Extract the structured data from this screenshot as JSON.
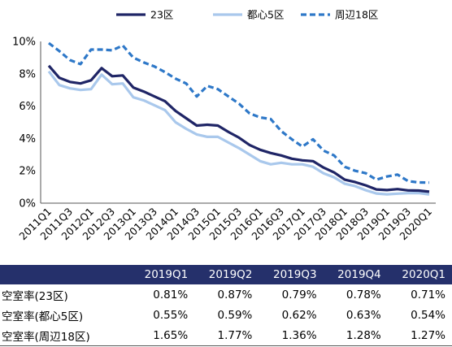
{
  "colors": {
    "ku23": "#1f2566",
    "toshin5": "#a9c8ec",
    "shuhen18": "#2e78c8",
    "table_header_bg": "#25306b"
  },
  "chart_data": {
    "type": "line",
    "legend_position": "top",
    "grid": false,
    "x": [
      "2011Q1",
      "2011Q2",
      "2011Q3",
      "2011Q4",
      "2012Q1",
      "2012Q2",
      "2012Q3",
      "2012Q4",
      "2013Q1",
      "2013Q2",
      "2013Q3",
      "2013Q4",
      "2014Q1",
      "2014Q2",
      "2014Q3",
      "2014Q4",
      "2015Q1",
      "2015Q2",
      "2015Q3",
      "2015Q4",
      "2016Q1",
      "2016Q2",
      "2016Q3",
      "2016Q4",
      "2017Q1",
      "2017Q2",
      "2017Q3",
      "2017Q4",
      "2018Q1",
      "2018Q2",
      "2018Q3",
      "2018Q4",
      "2019Q1",
      "2019Q2",
      "2019Q3",
      "2019Q4",
      "2020Q1"
    ],
    "x_tick_labels": [
      "2011Q1",
      "2011Q3",
      "2012Q1",
      "2012Q3",
      "2013Q1",
      "2013Q3",
      "2014Q1",
      "2014Q3",
      "2015Q1",
      "2015Q3",
      "2016Q1",
      "2016Q3",
      "2017Q1",
      "2017Q3",
      "2018Q1",
      "2018Q3",
      "2019Q1",
      "2019Q3",
      "2020Q1"
    ],
    "y_ticks": [
      "0%",
      "2%",
      "4%",
      "6%",
      "8%",
      "10%"
    ],
    "ylim": [
      0,
      10
    ],
    "series": [
      {
        "name": "23区",
        "style": "solid-thick",
        "values": [
          8.5,
          7.75,
          7.5,
          7.4,
          7.6,
          8.35,
          7.85,
          7.9,
          7.15,
          6.9,
          6.6,
          6.3,
          5.7,
          5.25,
          4.8,
          4.85,
          4.8,
          4.4,
          4.05,
          3.6,
          3.3,
          3.1,
          2.95,
          2.75,
          2.65,
          2.6,
          2.2,
          1.9,
          1.45,
          1.3,
          1.1,
          0.85,
          0.81,
          0.87,
          0.79,
          0.78,
          0.71
        ]
      },
      {
        "name": "都心5区",
        "style": "solid-light",
        "values": [
          8.15,
          7.3,
          7.1,
          7.0,
          7.05,
          7.95,
          7.35,
          7.4,
          6.55,
          6.35,
          6.05,
          5.75,
          5.0,
          4.6,
          4.25,
          4.1,
          4.1,
          3.75,
          3.4,
          3.0,
          2.6,
          2.4,
          2.5,
          2.4,
          2.4,
          2.25,
          1.85,
          1.6,
          1.2,
          1.05,
          0.8,
          0.6,
          0.55,
          0.59,
          0.62,
          0.63,
          0.54
        ]
      },
      {
        "name": "周辺18区",
        "style": "dashed",
        "values": [
          9.9,
          9.4,
          8.85,
          8.6,
          9.5,
          9.5,
          9.45,
          9.75,
          9.0,
          8.7,
          8.45,
          8.1,
          7.7,
          7.4,
          6.6,
          7.25,
          7.05,
          6.6,
          6.15,
          5.55,
          5.3,
          5.2,
          4.45,
          3.95,
          3.5,
          3.95,
          3.25,
          2.95,
          2.25,
          2.0,
          1.85,
          1.45,
          1.65,
          1.77,
          1.36,
          1.28,
          1.27
        ]
      }
    ]
  },
  "table": {
    "headers": [
      "2019Q1",
      "2019Q2",
      "2019Q3",
      "2019Q4",
      "2020Q1"
    ],
    "rows": [
      {
        "label": "空室率(23区)",
        "values": [
          "0.81%",
          "0.87%",
          "0.79%",
          "0.78%",
          "0.71%"
        ]
      },
      {
        "label": "空室率(都心5区)",
        "values": [
          "0.55%",
          "0.59%",
          "0.62%",
          "0.63%",
          "0.54%"
        ]
      },
      {
        "label": "空室率(周辺18区)",
        "values": [
          "1.65%",
          "1.77%",
          "1.36%",
          "1.28%",
          "1.27%"
        ]
      }
    ]
  }
}
